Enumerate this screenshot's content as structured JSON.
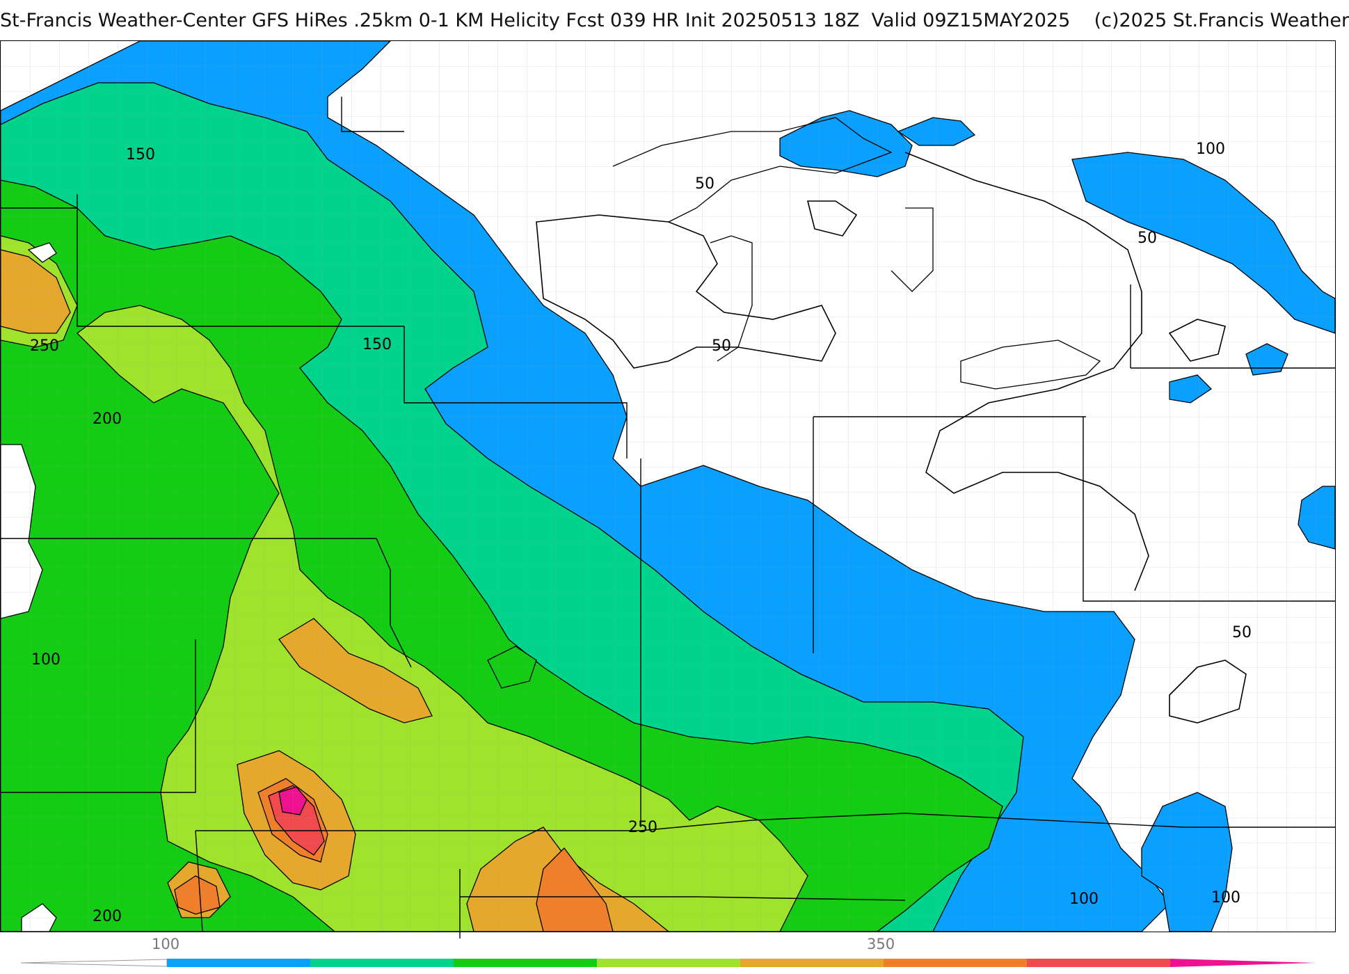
{
  "header": {
    "title": "St-Francis Weather-Center GFS HiRes .25km 0-1 KM Helicity Fcst 039 HR Init 20250513 18Z  Valid 09Z15MAY2025    (c)2025 St.Francis Weather"
  },
  "colors": {
    "band_100_150": "#0aa0ff",
    "band_150_200": "#00d38c",
    "band_200_250": "#14cc14",
    "band_250_300": "#a0e32d",
    "band_300_350": "#e5a82c",
    "band_350_400": "#ef7f2a",
    "band_400_450": "#f04a4e",
    "band_450_500": "#ee1290"
  },
  "contour_labels": [
    {
      "id": "150-nw",
      "text": "150"
    },
    {
      "id": "250-w",
      "text": "250"
    },
    {
      "id": "150-c",
      "text": "150"
    },
    {
      "id": "200-w",
      "text": "200"
    },
    {
      "id": "100-sw",
      "text": "100"
    },
    {
      "id": "200-s",
      "text": "200"
    },
    {
      "id": "50-n",
      "text": "50"
    },
    {
      "id": "50-c",
      "text": "50"
    },
    {
      "id": "100-ne",
      "text": "100"
    },
    {
      "id": "50-ne",
      "text": "50"
    },
    {
      "id": "50-e",
      "text": "50"
    },
    {
      "id": "250-s",
      "text": "250"
    },
    {
      "id": "100-se1",
      "text": "100"
    },
    {
      "id": "100-se2",
      "text": "100"
    }
  ],
  "colorbar": {
    "labels": [
      "100",
      "350"
    ],
    "segment_colors": [
      "#0aa0ff",
      "#00d38c",
      "#14cc14",
      "#a0e32d",
      "#e5a82c",
      "#ef7f2a",
      "#f04a4e",
      "#ee1290"
    ]
  }
}
